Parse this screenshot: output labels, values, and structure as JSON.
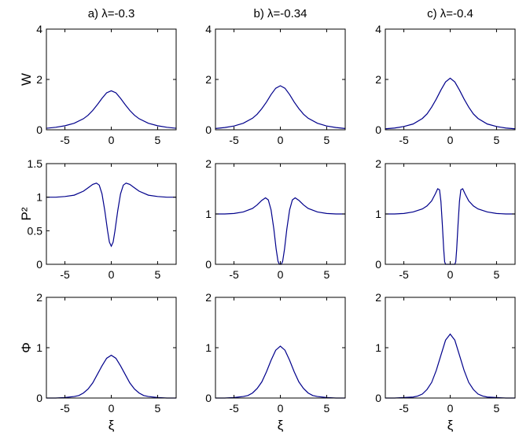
{
  "style": {
    "curve_color": "#00008b",
    "axis_color": "#000000"
  },
  "chart_data": [
    {
      "type": "line",
      "panel": "a-W",
      "title": "a)  λ=-0.3",
      "ylabel": "W",
      "xlabel": "",
      "xlim": [
        -7,
        7
      ],
      "ylim": [
        0,
        4
      ],
      "xticks": [
        "-5",
        "0",
        "5"
      ],
      "yticks": [
        "0",
        "2",
        "4"
      ],
      "series": [
        {
          "x": [
            -7,
            -6,
            -5,
            -4,
            -3,
            -2.5,
            -2,
            -1.5,
            -1,
            -0.5,
            0,
            0.5,
            1,
            1.5,
            2,
            2.5,
            3,
            4,
            5,
            6,
            7
          ],
          "y": [
            0.06,
            0.1,
            0.16,
            0.26,
            0.44,
            0.58,
            0.77,
            1.0,
            1.25,
            1.47,
            1.55,
            1.47,
            1.25,
            1.0,
            0.77,
            0.58,
            0.44,
            0.26,
            0.16,
            0.1,
            0.06
          ]
        }
      ]
    },
    {
      "type": "line",
      "panel": "b-W",
      "title": "b)  λ=-0.34",
      "ylabel": "",
      "xlabel": "",
      "xlim": [
        -7,
        7
      ],
      "ylim": [
        0,
        4
      ],
      "xticks": [
        "-5",
        "0",
        "5"
      ],
      "yticks": [
        "0",
        "2",
        "4"
      ],
      "series": [
        {
          "x": [
            -7,
            -6,
            -5,
            -4,
            -3,
            -2.5,
            -2,
            -1.5,
            -1,
            -0.5,
            0,
            0.5,
            1,
            1.5,
            2,
            2.5,
            3,
            4,
            5,
            6,
            7
          ],
          "y": [
            0.05,
            0.09,
            0.15,
            0.26,
            0.46,
            0.62,
            0.84,
            1.1,
            1.4,
            1.65,
            1.75,
            1.65,
            1.4,
            1.1,
            0.84,
            0.62,
            0.46,
            0.26,
            0.15,
            0.09,
            0.05
          ]
        }
      ]
    },
    {
      "type": "line",
      "panel": "c-W",
      "title": "c)  λ=-0.4",
      "ylabel": "",
      "xlabel": "",
      "xlim": [
        -7,
        7
      ],
      "ylim": [
        0,
        4
      ],
      "xticks": [
        "-5",
        "0",
        "5"
      ],
      "yticks": [
        "0",
        "2",
        "4"
      ],
      "series": [
        {
          "x": [
            -7,
            -6,
            -5,
            -4,
            -3,
            -2.5,
            -2,
            -1.5,
            -1,
            -0.5,
            0,
            0.5,
            1,
            1.5,
            2,
            2.5,
            3,
            4,
            5,
            6,
            7
          ],
          "y": [
            0.04,
            0.07,
            0.13,
            0.23,
            0.45,
            0.63,
            0.9,
            1.22,
            1.58,
            1.9,
            2.05,
            1.9,
            1.58,
            1.22,
            0.9,
            0.63,
            0.45,
            0.23,
            0.13,
            0.07,
            0.04
          ]
        }
      ]
    },
    {
      "type": "line",
      "panel": "a-P2",
      "title": "",
      "ylabel": "P²",
      "xlabel": "",
      "xlim": [
        -7,
        7
      ],
      "ylim": [
        0,
        1.5
      ],
      "xticks": [
        "-5",
        "0",
        "5"
      ],
      "yticks": [
        "0",
        "0.5",
        "1",
        "1.5"
      ],
      "series": [
        {
          "x": [
            -7,
            -6,
            -5,
            -4,
            -3,
            -2.5,
            -2,
            -1.6,
            -1.3,
            -1,
            -0.7,
            -0.4,
            -0.2,
            0,
            0.2,
            0.4,
            0.7,
            1,
            1.3,
            1.6,
            2,
            2.5,
            3,
            4,
            5,
            6,
            7
          ],
          "y": [
            1.0,
            1.0,
            1.01,
            1.03,
            1.09,
            1.14,
            1.19,
            1.21,
            1.18,
            1.05,
            0.8,
            0.5,
            0.33,
            0.27,
            0.33,
            0.5,
            0.8,
            1.05,
            1.18,
            1.21,
            1.19,
            1.14,
            1.09,
            1.03,
            1.01,
            1.0,
            1.0
          ]
        }
      ]
    },
    {
      "type": "line",
      "panel": "b-P2",
      "title": "",
      "ylabel": "",
      "xlabel": "",
      "xlim": [
        -7,
        7
      ],
      "ylim": [
        0,
        2
      ],
      "xticks": [
        "-5",
        "0",
        "5"
      ],
      "yticks": [
        "0",
        "1",
        "2"
      ],
      "series": [
        {
          "x": [
            -7,
            -6,
            -5,
            -4,
            -3,
            -2.5,
            -2,
            -1.6,
            -1.3,
            -1,
            -0.7,
            -0.45,
            -0.25,
            -0.1,
            0,
            0.1,
            0.25,
            0.45,
            0.7,
            1,
            1.3,
            1.6,
            2,
            2.5,
            3,
            4,
            5,
            6,
            7
          ],
          "y": [
            1.0,
            1.0,
            1.01,
            1.04,
            1.11,
            1.18,
            1.27,
            1.32,
            1.28,
            1.08,
            0.7,
            0.3,
            0.06,
            0.0,
            0.0,
            0.0,
            0.06,
            0.3,
            0.7,
            1.08,
            1.28,
            1.32,
            1.27,
            1.18,
            1.11,
            1.04,
            1.01,
            1.0,
            1.0
          ]
        }
      ]
    },
    {
      "type": "line",
      "panel": "c-P2",
      "title": "",
      "ylabel": "",
      "xlabel": "",
      "xlim": [
        -7,
        7
      ],
      "ylim": [
        0,
        2
      ],
      "xticks": [
        "-5",
        "0",
        "5"
      ],
      "yticks": [
        "0",
        "1",
        "2"
      ],
      "series": [
        {
          "x": [
            -7,
            -6,
            -5,
            -4,
            -3,
            -2.5,
            -2,
            -1.6,
            -1.35,
            -1.15,
            -1.0,
            -0.85,
            -0.7,
            -0.6,
            -0.5,
            0.5,
            0.6,
            0.7,
            0.85,
            1.0,
            1.15,
            1.35,
            1.6,
            2,
            2.5,
            3,
            4,
            5,
            6,
            7
          ],
          "y": [
            1.0,
            1.0,
            1.01,
            1.04,
            1.1,
            1.16,
            1.26,
            1.4,
            1.5,
            1.48,
            1.25,
            0.8,
            0.3,
            0.05,
            0.0,
            0.0,
            0.05,
            0.3,
            0.8,
            1.25,
            1.48,
            1.5,
            1.4,
            1.26,
            1.16,
            1.1,
            1.04,
            1.01,
            1.0,
            1.0
          ]
        }
      ]
    },
    {
      "type": "line",
      "panel": "a-Phi",
      "title": "",
      "ylabel": "Φ",
      "xlabel": "ξ",
      "xlim": [
        -7,
        7
      ],
      "ylim": [
        0,
        2
      ],
      "xticks": [
        "-5",
        "0",
        "5"
      ],
      "yticks": [
        "0",
        "1",
        "2"
      ],
      "series": [
        {
          "x": [
            -7,
            -6,
            -5,
            -4,
            -3.5,
            -3,
            -2.5,
            -2,
            -1.5,
            -1,
            -0.5,
            0,
            0.5,
            1,
            1.5,
            2,
            2.5,
            3,
            3.5,
            4,
            5,
            6,
            7
          ],
          "y": [
            0.0,
            0.0,
            0.01,
            0.03,
            0.05,
            0.1,
            0.18,
            0.3,
            0.47,
            0.64,
            0.79,
            0.85,
            0.79,
            0.64,
            0.47,
            0.3,
            0.18,
            0.1,
            0.05,
            0.03,
            0.01,
            0.0,
            0.0
          ]
        }
      ]
    },
    {
      "type": "line",
      "panel": "b-Phi",
      "title": "",
      "ylabel": "",
      "xlabel": "ξ",
      "xlim": [
        -7,
        7
      ],
      "ylim": [
        0,
        2
      ],
      "xticks": [
        "-5",
        "0",
        "5"
      ],
      "yticks": [
        "0",
        "1",
        "2"
      ],
      "series": [
        {
          "x": [
            -7,
            -6,
            -5,
            -4,
            -3.5,
            -3,
            -2.5,
            -2,
            -1.5,
            -1,
            -0.5,
            0,
            0.5,
            1,
            1.5,
            2,
            2.5,
            3,
            3.5,
            4,
            5,
            6,
            7
          ],
          "y": [
            0.0,
            0.0,
            0.01,
            0.03,
            0.05,
            0.1,
            0.19,
            0.32,
            0.52,
            0.75,
            0.95,
            1.03,
            0.95,
            0.75,
            0.52,
            0.32,
            0.19,
            0.1,
            0.05,
            0.03,
            0.01,
            0.0,
            0.0
          ]
        }
      ]
    },
    {
      "type": "line",
      "panel": "c-Phi",
      "title": "",
      "ylabel": "",
      "xlabel": "ξ",
      "xlim": [
        -7,
        7
      ],
      "ylim": [
        0,
        2
      ],
      "xticks": [
        "-5",
        "0",
        "5"
      ],
      "yticks": [
        "0",
        "1",
        "2"
      ],
      "series": [
        {
          "x": [
            -7,
            -6,
            -5,
            -4,
            -3.5,
            -3,
            -2.5,
            -2,
            -1.5,
            -1,
            -0.5,
            0,
            0.5,
            1,
            1.5,
            2,
            2.5,
            3,
            3.5,
            4,
            5,
            6,
            7
          ],
          "y": [
            0.0,
            0.0,
            0.01,
            0.02,
            0.04,
            0.08,
            0.17,
            0.31,
            0.55,
            0.85,
            1.15,
            1.27,
            1.15,
            0.85,
            0.55,
            0.31,
            0.17,
            0.08,
            0.04,
            0.02,
            0.01,
            0.0,
            0.0
          ]
        }
      ]
    }
  ]
}
